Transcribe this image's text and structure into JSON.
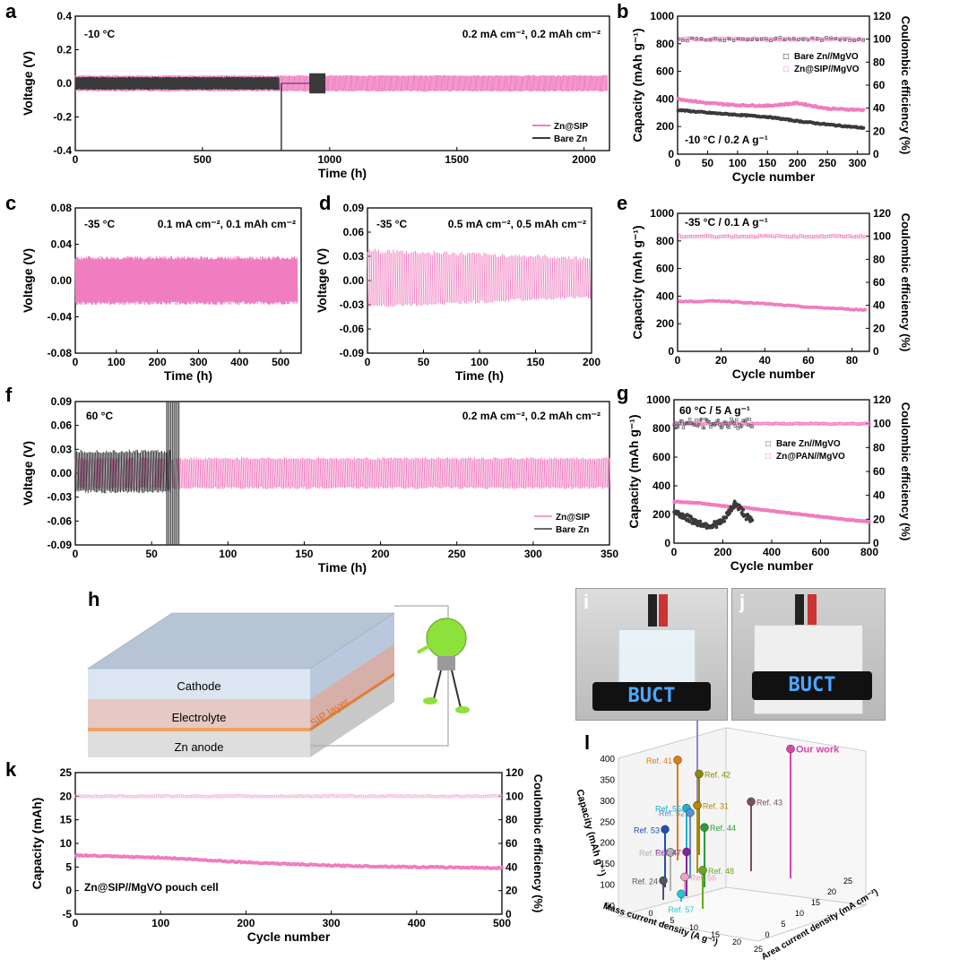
{
  "colors": {
    "pink": "#f07dc0",
    "dark": "#3a3a3a",
    "pink_light": "#f5b6da"
  },
  "panels": {
    "a": {
      "letter": "a",
      "cond_left": "-10 °C",
      "cond_right": "0.2 mA cm⁻², 0.2 mAh cm⁻²",
      "xlabel": "Time (h)",
      "ylabel": "Voltage (V)",
      "xticks": [
        "0",
        "500",
        "1000",
        "1500",
        "2000"
      ],
      "yticks": [
        "0.4",
        "0.2",
        "0.0",
        "-0.2",
        "-0.4"
      ],
      "legend": [
        "Zn@SIP",
        "Bare Zn"
      ]
    },
    "b": {
      "letter": "b",
      "cond": "-10 °C / 0.2 A g⁻¹",
      "xlabel": "Cycle number",
      "ylabel": "Capacity (mAh g⁻¹)",
      "y2label": "Coulombic efficiency (%)",
      "xticks": [
        "0",
        "50",
        "100",
        "150",
        "200",
        "250",
        "300"
      ],
      "yticks": [
        "1000",
        "800",
        "600",
        "400",
        "200",
        "0"
      ],
      "y2ticks": [
        "120",
        "100",
        "80",
        "60",
        "40",
        "20",
        "0"
      ],
      "legend": [
        "Bare Zn//MgVO",
        "Zn@SIP//MgVO"
      ]
    },
    "c": {
      "letter": "c",
      "cond_left": "-35 °C",
      "cond_right": "0.1 mA cm⁻², 0.1 mAh cm⁻²",
      "xlabel": "Time (h)",
      "ylabel": "Voltage (V)",
      "xticks": [
        "0",
        "100",
        "200",
        "300",
        "400",
        "500"
      ],
      "yticks": [
        "0.08",
        "0.04",
        "0.00",
        "-0.04",
        "-0.08"
      ]
    },
    "d": {
      "letter": "d",
      "cond_left": "-35 °C",
      "cond_right": "0.5 mA cm⁻², 0.5 mAh cm⁻²",
      "xlabel": "Time (h)",
      "ylabel": "Voltage (V)",
      "xticks": [
        "0",
        "50",
        "100",
        "150",
        "200"
      ],
      "yticks": [
        "0.09",
        "0.06",
        "0.03",
        "0.00",
        "-0.03",
        "-0.06",
        "-0.09"
      ]
    },
    "e": {
      "letter": "e",
      "cond": "-35 °C / 0.1 A g⁻¹",
      "xlabel": "Cycle number",
      "ylabel": "Capacity (mAh g⁻¹)",
      "y2label": "Coulombic efficiency (%)",
      "xticks": [
        "0",
        "20",
        "40",
        "60",
        "80"
      ],
      "yticks": [
        "1000",
        "800",
        "600",
        "400",
        "200",
        "0"
      ],
      "y2ticks": [
        "120",
        "100",
        "80",
        "60",
        "40",
        "20",
        "0"
      ]
    },
    "f": {
      "letter": "f",
      "cond_left": "60 °C",
      "cond_right": "0.2 mA cm⁻², 0.2 mAh cm⁻²",
      "xlabel": "Time (h)",
      "ylabel": "Voltage (V)",
      "xticks": [
        "0",
        "50",
        "100",
        "150",
        "200",
        "250",
        "300",
        "350"
      ],
      "yticks": [
        "0.09",
        "0.06",
        "0.03",
        "0.00",
        "-0.03",
        "-0.06",
        "-0.09"
      ],
      "legend": [
        "Zn@SIP",
        "Bare Zn"
      ]
    },
    "g": {
      "letter": "g",
      "cond": "60 °C / 5 A g⁻¹",
      "xlabel": "Cycle number",
      "ylabel": "Capacity (mAh g⁻¹)",
      "y2label": "Coulombic efficiency (%)",
      "xticks": [
        "0",
        "200",
        "400",
        "600",
        "800"
      ],
      "yticks": [
        "1000",
        "800",
        "600",
        "400",
        "200",
        "0"
      ],
      "y2ticks": [
        "120",
        "100",
        "80",
        "60",
        "40",
        "20",
        "0"
      ],
      "legend": [
        "Bare Zn//MgVO",
        "Zn@PAN//MgVO"
      ]
    },
    "h": {
      "letter": "h",
      "layers": [
        "Cathode",
        "Electrolyte",
        "Zn  anode"
      ],
      "sip_label": "SIP layer"
    },
    "i": {
      "letter": "i",
      "screen": "BUCT"
    },
    "j": {
      "letter": "j",
      "screen": "BUCT"
    },
    "k": {
      "letter": "k",
      "cond": "Zn@SIP//MgVO pouch cell",
      "xlabel": "Cycle number",
      "ylabel": "Capacity (mAh)",
      "y2label": "Coulombic efficiency (%)",
      "xticks": [
        "0",
        "100",
        "200",
        "300",
        "400",
        "500"
      ],
      "yticks": [
        "25",
        "20",
        "15",
        "10",
        "5",
        "0",
        "-5"
      ],
      "y2ticks": [
        "120",
        "100",
        "80",
        "60",
        "40",
        "20",
        "0"
      ]
    },
    "l": {
      "letter": "l",
      "ylabel": "Capacity (mAh g⁻¹)",
      "xlabel": "Mass current density (A g⁻¹)",
      "zlabel": "Area current density (mA cm⁻²)",
      "yticks": [
        "400",
        "350",
        "300",
        "250",
        "200",
        "150",
        "100",
        "50"
      ],
      "xticks": [
        "0",
        "5",
        "10",
        "15",
        "20",
        "25"
      ],
      "zticks": [
        "0",
        "5",
        "10",
        "15",
        "20",
        "25"
      ],
      "refs": [
        {
          "label": "Ref. 54",
          "color": "#9b7fd6"
        },
        {
          "label": "Ref. 41",
          "color": "#e07b12"
        },
        {
          "label": "Ref. 42",
          "color": "#8a8a00"
        },
        {
          "label": "Ref. 55",
          "color": "#18b5c8"
        },
        {
          "label": "Ref. 31",
          "color": "#b58a00"
        },
        {
          "label": "Ref. 52",
          "color": "#5a8fd6"
        },
        {
          "label": "Ref. 44",
          "color": "#2a9a3a"
        },
        {
          "label": "Ref. 53",
          "color": "#1f4fb0"
        },
        {
          "label": "Ref. 47",
          "color": "#8a1fa0"
        },
        {
          "label": "Ref. 30",
          "color": "#b0b0b0"
        },
        {
          "label": "Ref. 48",
          "color": "#6aa81a"
        },
        {
          "label": "Ref. 24",
          "color": "#555555"
        },
        {
          "label": "Ref. 56",
          "color": "#f0a0c0"
        },
        {
          "label": "Ref. 57",
          "color": "#20c8d8"
        },
        {
          "label": "Ref. 43",
          "color": "#7a5060"
        },
        {
          "label": "Our work",
          "color": "#e040b0"
        }
      ]
    }
  },
  "chart_data": [
    {
      "panel": "a",
      "type": "line",
      "xlim": [
        0,
        2100
      ],
      "ylim": [
        -0.4,
        0.4
      ],
      "series": [
        {
          "name": "Zn@SIP",
          "description": "symmetric cell voltage profile",
          "x": [
            0,
            2090
          ],
          "band": [
            -0.05,
            0.05
          ]
        },
        {
          "name": "Bare Zn",
          "x": [
            0,
            800
          ],
          "band": [
            -0.04,
            0.04
          ],
          "failure_time": 810
        }
      ]
    },
    {
      "panel": "b",
      "type": "scatter",
      "xlim": [
        0,
        320
      ],
      "ylim": [
        0,
        1000
      ],
      "y2lim": [
        0,
        120
      ],
      "series": [
        {
          "name": "Zn@SIP//MgVO",
          "x": [
            1,
            50,
            100,
            150,
            200,
            250,
            310
          ],
          "y": [
            400,
            370,
            355,
            350,
            370,
            330,
            320
          ],
          "ce": [
            100,
            100,
            100,
            100,
            100,
            100,
            100
          ]
        },
        {
          "name": "Bare Zn//MgVO",
          "x": [
            1,
            50,
            100,
            150,
            200,
            250,
            310
          ],
          "y": [
            320,
            300,
            285,
            270,
            240,
            215,
            190
          ],
          "ce": [
            100,
            100,
            100,
            100,
            100,
            100,
            100
          ]
        }
      ]
    },
    {
      "panel": "c",
      "type": "line",
      "xlim": [
        0,
        550
      ],
      "ylim": [
        -0.08,
        0.08
      ],
      "series": [
        {
          "name": "Zn@SIP",
          "x": [
            0,
            540
          ],
          "band": [
            -0.027,
            0.027
          ]
        }
      ]
    },
    {
      "panel": "d",
      "type": "line",
      "xlim": [
        0,
        200
      ],
      "ylim": [
        -0.09,
        0.09
      ],
      "series": [
        {
          "name": "Zn@SIP",
          "x": [
            0,
            198
          ],
          "band_start": [
            -0.035,
            0.04
          ],
          "band_end": [
            -0.022,
            0.03
          ]
        }
      ]
    },
    {
      "panel": "e",
      "type": "scatter",
      "xlim": [
        0,
        88
      ],
      "ylim": [
        0,
        1000
      ],
      "y2lim": [
        0,
        120
      ],
      "series": [
        {
          "name": "Zn@SIP//MgVO",
          "x": [
            1,
            20,
            40,
            60,
            86
          ],
          "y": [
            360,
            365,
            345,
            320,
            300
          ],
          "ce": [
            100,
            100,
            100,
            100,
            100
          ]
        }
      ]
    },
    {
      "panel": "f",
      "type": "line",
      "xlim": [
        0,
        350
      ],
      "ylim": [
        -0.09,
        0.09
      ],
      "series": [
        {
          "name": "Zn@SIP",
          "x": [
            0,
            350
          ],
          "band": [
            -0.02,
            0.02
          ]
        },
        {
          "name": "Bare Zn",
          "x": [
            0,
            68
          ],
          "band": [
            -0.025,
            0.03
          ],
          "failure_time": 62
        }
      ]
    },
    {
      "panel": "g",
      "type": "scatter",
      "xlim": [
        0,
        800
      ],
      "ylim": [
        0,
        1000
      ],
      "y2lim": [
        0,
        120
      ],
      "series": [
        {
          "name": "Zn@PAN//MgVO",
          "x": [
            1,
            100,
            200,
            300,
            400,
            500,
            600,
            700,
            800
          ],
          "y": [
            290,
            280,
            260,
            245,
            225,
            205,
            185,
            165,
            150
          ],
          "ce": [
            100,
            100,
            100,
            100,
            100,
            100,
            100,
            100,
            100
          ]
        },
        {
          "name": "Bare Zn//MgVO",
          "x": [
            1,
            50,
            100,
            150,
            200,
            250,
            300,
            320
          ],
          "y": [
            220,
            180,
            140,
            120,
            150,
            280,
            180,
            150
          ],
          "ce": [
            100,
            100,
            100,
            100,
            100,
            100,
            100,
            100
          ]
        }
      ]
    },
    {
      "panel": "k",
      "type": "scatter",
      "xlim": [
        0,
        500
      ],
      "ylim": [
        -5,
        25
      ],
      "y2lim": [
        0,
        120
      ],
      "series": [
        {
          "name": "Zn@SIP//MgVO pouch cell",
          "x": [
            1,
            50,
            100,
            200,
            300,
            400,
            500
          ],
          "y": [
            7.5,
            7.2,
            7.0,
            6.0,
            5.3,
            5.0,
            4.8
          ],
          "ce": [
            100,
            100,
            100,
            100,
            100,
            100,
            100
          ]
        }
      ]
    },
    {
      "panel": "l",
      "type": "scatter",
      "ylim": [
        50,
        400
      ],
      "points": [
        {
          "label": "Our work",
          "capacity": 385
        },
        {
          "label": "Ref. 54",
          "capacity": 355
        },
        {
          "label": "Ref. 41",
          "capacity": 310
        },
        {
          "label": "Ref. 42",
          "capacity": 260
        },
        {
          "label": "Ref. 43",
          "capacity": 230
        },
        {
          "label": "Ref. 55",
          "capacity": 255
        },
        {
          "label": "Ref. 31",
          "capacity": 225
        },
        {
          "label": "Ref. 52",
          "capacity": 220
        },
        {
          "label": "Ref. 44",
          "capacity": 205
        },
        {
          "label": "Ref. 53",
          "capacity": 200
        },
        {
          "label": "Ref. 47",
          "capacity": 165
        },
        {
          "label": "Ref. 30",
          "capacity": 150
        },
        {
          "label": "Ref. 48",
          "capacity": 150
        },
        {
          "label": "Ref. 24",
          "capacity": 100
        },
        {
          "label": "Ref. 56",
          "capacity": 100
        },
        {
          "label": "Ref. 57",
          "capacity": 70
        }
      ]
    }
  ]
}
